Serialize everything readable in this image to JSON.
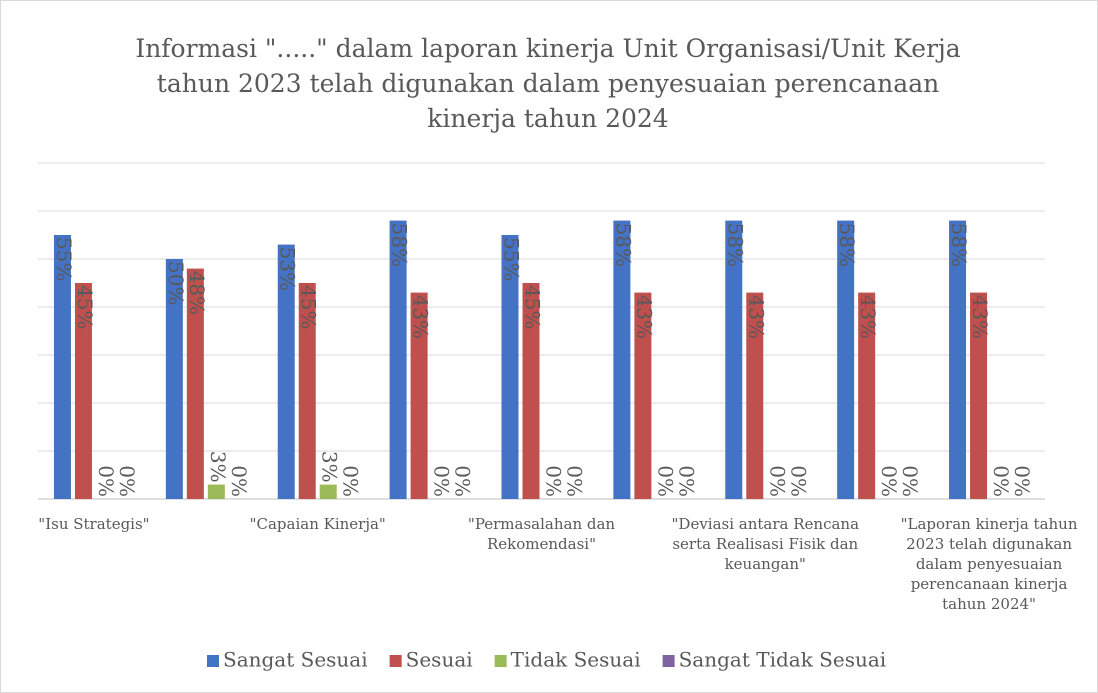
{
  "chart_data": {
    "type": "bar",
    "title": [
      "Informasi \".....\"  dalam laporan kinerja Unit Organisasi/Unit Kerja",
      "tahun 2023 telah digunakan dalam penyesuaian perencanaan",
      "kinerja tahun 2024"
    ],
    "categories": [
      [
        "\"Isu Strategis\""
      ],
      null,
      [
        "\"Capaian Kinerja\""
      ],
      null,
      [
        "\"Permasalahan dan",
        "Rekomendasi\""
      ],
      null,
      [
        "\"Deviasi antara Rencana",
        "serta Realisasi Fisik dan",
        "keuangan\""
      ],
      null,
      [
        "\"Laporan kinerja tahun",
        "2023 telah digunakan",
        "dalam penyesuaian",
        "perencanaan kinerja",
        "tahun 2024\""
      ]
    ],
    "series": [
      {
        "name": "Sangat Sesuai",
        "color": "#4472c4",
        "values": [
          55,
          50,
          53,
          58,
          55,
          58,
          58,
          58,
          58
        ],
        "value_labels": [
          "55%",
          "50%",
          "53%",
          "58%",
          "55%",
          "58%",
          "58%",
          "58%",
          "58%"
        ]
      },
      {
        "name": "Sesuai",
        "color": "#c0504d",
        "values": [
          45,
          48,
          45,
          43,
          45,
          43,
          43,
          43,
          43
        ],
        "value_labels": [
          "45%",
          "48%",
          "45%",
          "43%",
          "45%",
          "43%",
          "43%",
          "43%",
          "43%"
        ]
      },
      {
        "name": "Tidak Sesuai",
        "color": "#9bbb59",
        "values": [
          0,
          3,
          3,
          0,
          0,
          0,
          0,
          0,
          0
        ],
        "value_labels": [
          "0%",
          "3%",
          "3%",
          "0%",
          "0%",
          "0%",
          "0%",
          "0%",
          "0%"
        ]
      },
      {
        "name": "Sangat Tidak Sesuai",
        "color": "#8064a2",
        "values": [
          0,
          0,
          0,
          0,
          0,
          0,
          0,
          0,
          0
        ],
        "value_labels": [
          "0%",
          "0%",
          "0%",
          "0%",
          "0%",
          "0%",
          "0%",
          "0%",
          "0%"
        ]
      }
    ],
    "ylim": [
      0,
      70
    ],
    "yticks": [
      0,
      10,
      20,
      30,
      40,
      50,
      60,
      70
    ],
    "grid": true,
    "legend": "bottom"
  }
}
